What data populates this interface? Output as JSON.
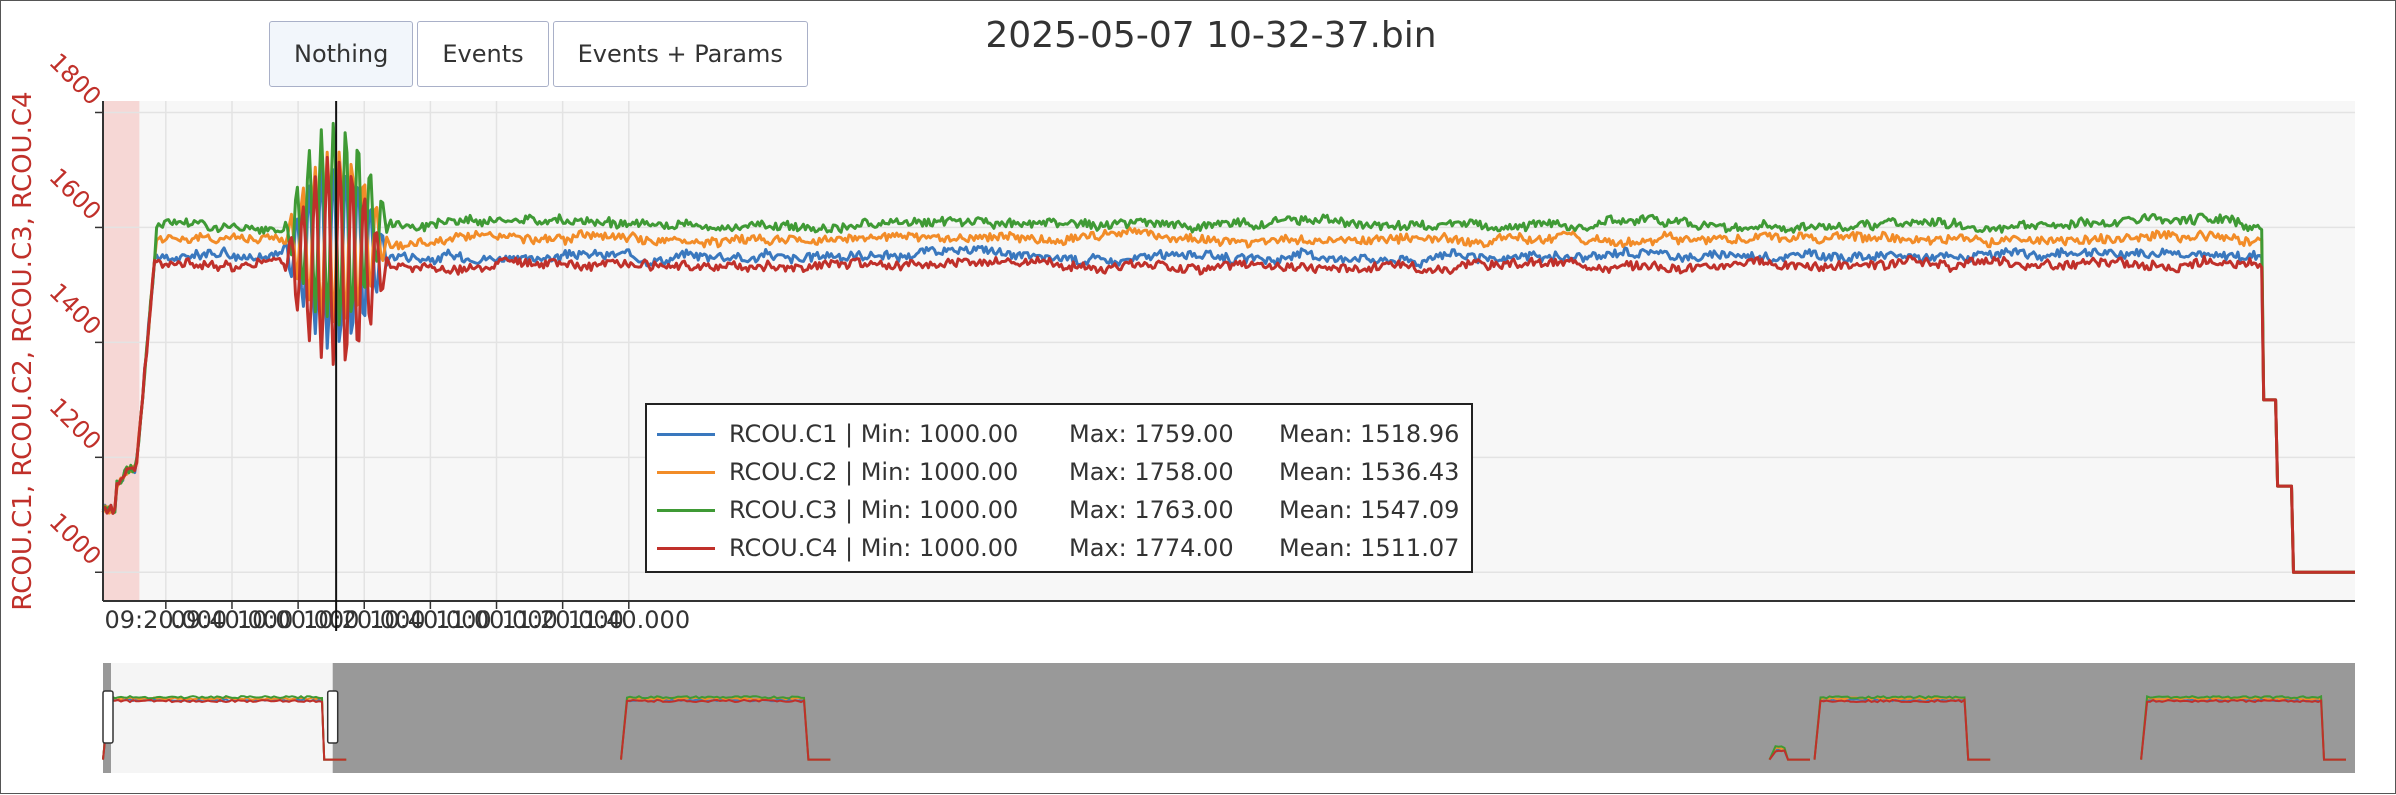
{
  "buttons": [
    {
      "label": "Nothing",
      "active": true
    },
    {
      "label": "Events",
      "active": false
    },
    {
      "label": "Events + Params",
      "active": false
    }
  ],
  "chart_data": {
    "type": "line",
    "title": "2025-05-07 10-32-37.bin",
    "ylabel": "RCOU.C1, RCOU.C2, RCOU.C3, RCOU.C4",
    "ylim": [
      950,
      1820
    ],
    "yticks": [
      "1000",
      "1200",
      "1400",
      "1600",
      "1800"
    ],
    "xticks": [
      "09:20.000",
      "09:40.000",
      "10:00.000",
      "10:20.000",
      "10:40.000",
      "11:00.000",
      "11:20.000",
      "11:40.000"
    ],
    "x_unit_note": "",
    "xlim_seconds": [
      541,
      1222
    ],
    "cursor_time": "10:11.5",
    "shaded_region": [
      "09:01",
      "09:12"
    ],
    "grid": true,
    "legend_position": "center-bottom",
    "series": [
      {
        "name": "RCOU.C1",
        "color": "#3a78be",
        "min": "1000.00",
        "max": "1759.00",
        "mean": "1518.96",
        "offset": -20,
        "swing": 1.0
      },
      {
        "name": "RCOU.C2",
        "color": "#f28c28",
        "min": "1000.00",
        "max": "1758.00",
        "mean": "1536.43",
        "offset": 10,
        "swing": 0.95
      },
      {
        "name": "RCOU.C3",
        "color": "#3f9a35",
        "min": "1000.00",
        "max": "1763.00",
        "mean": "1547.09",
        "offset": 35,
        "swing": 1.1
      },
      {
        "name": "RCOU.C4",
        "color": "#c0302a",
        "min": "1000.00",
        "max": "1774.00",
        "mean": "1511.07",
        "offset": -35,
        "swing": 1.15
      }
    ],
    "legend_labels": {
      "min": "Min:",
      "max": "Max:",
      "mean": "Mean:"
    },
    "navigator": {
      "blocks": [
        {
          "start": 0.0,
          "end": 0.1,
          "level": 1560
        },
        {
          "start": 0.23,
          "end": 0.315,
          "level": 1560
        },
        {
          "start": 0.74,
          "end": 0.75,
          "level": 1100
        },
        {
          "start": 0.76,
          "end": 0.83,
          "level": 1560
        },
        {
          "start": 0.905,
          "end": 0.988,
          "level": 1560
        }
      ],
      "window": [
        0.0,
        0.102
      ]
    }
  }
}
